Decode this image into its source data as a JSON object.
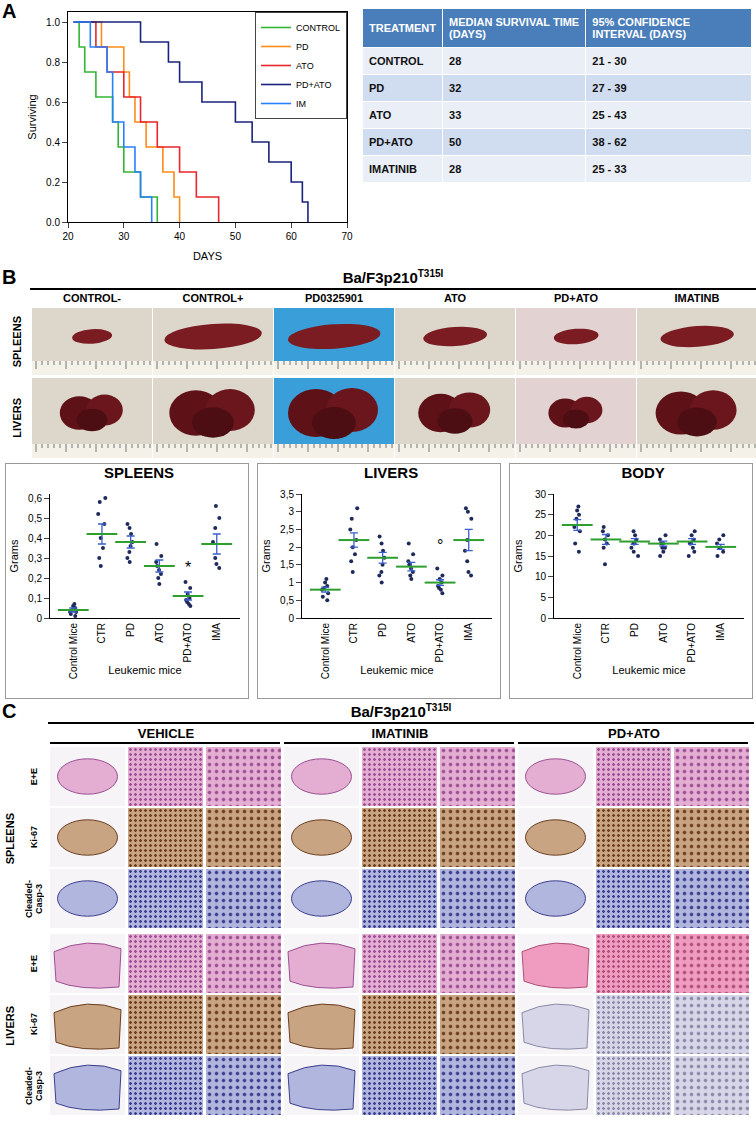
{
  "chart_data": [
    {
      "type": "line",
      "line_style": "step",
      "xlabel": "DAYS",
      "ylabel": "Surviving",
      "xlim": [
        20,
        70
      ],
      "xticks": [
        20,
        30,
        40,
        50,
        60,
        70
      ],
      "ylim": [
        0,
        1.05
      ],
      "yticks": [
        {
          "value": 0,
          "label": "0.0"
        },
        {
          "value": 0.2,
          "label": "0.2"
        },
        {
          "value": 0.4,
          "label": "0.4"
        },
        {
          "value": 0.6,
          "label": "0.6"
        },
        {
          "value": 0.8,
          "label": "0.8"
        },
        {
          "value": 1,
          "label": "1.0"
        }
      ],
      "grid": false,
      "legend": "top right",
      "series": [
        {
          "name": "CONTROL",
          "color": "#33b533",
          "x": [
            21,
            22,
            23,
            25,
            28,
            29,
            30,
            33,
            36
          ],
          "values": [
            1,
            0.875,
            0.75,
            0.625,
            0.5,
            0.375,
            0.25,
            0.125,
            0
          ]
        },
        {
          "name": "PD",
          "color": "#ff8c1a",
          "x": [
            21,
            26,
            30,
            31,
            32,
            34,
            37,
            39,
            40
          ],
          "values": [
            1,
            0.875,
            0.75,
            0.625,
            0.5,
            0.375,
            0.25,
            0.125,
            0
          ]
        },
        {
          "name": "ATO",
          "color": "#e8262b",
          "x": [
            21,
            25,
            27,
            30,
            33,
            36,
            40,
            43,
            47
          ],
          "values": [
            1,
            0.875,
            0.75,
            0.625,
            0.5,
            0.375,
            0.25,
            0.125,
            0
          ]
        },
        {
          "name": "PD+ATO",
          "color": "#1a237e",
          "x": [
            21,
            33,
            38,
            40,
            44,
            50,
            53,
            56,
            60,
            62,
            63
          ],
          "values": [
            1,
            0.9,
            0.8,
            0.7,
            0.6,
            0.5,
            0.4,
            0.3,
            0.2,
            0.1,
            0
          ]
        },
        {
          "name": "IM",
          "color": "#2a7fff",
          "x": [
            21,
            24,
            27,
            28,
            30,
            32,
            33,
            35
          ],
          "values": [
            1,
            0.875,
            0.75,
            0.5,
            0.375,
            0.25,
            0.125,
            0
          ]
        }
      ]
    },
    {
      "type": "strip",
      "title": "SPLEENS",
      "xlabel": "Leukemic mice",
      "ylabel": "Grams",
      "color": "#1f2a5a",
      "categories": [
        "Control Mice",
        "CTR",
        "PD",
        "ATO",
        "PD+ATO",
        "IMA"
      ],
      "values": [
        [
          0.01,
          0.02,
          0.03,
          0.04,
          0.05,
          0.06,
          0.07,
          0.03
        ],
        [
          0.6,
          0.58,
          0.52,
          0.47,
          0.4,
          0.3,
          0.26,
          0.35
        ],
        [
          0.47,
          0.45,
          0.42,
          0.38,
          0.36,
          0.33,
          0.3,
          0.28
        ],
        [
          0.37,
          0.31,
          0.28,
          0.26,
          0.24,
          0.22,
          0.2,
          0.17
        ],
        [
          0.18,
          0.15,
          0.12,
          0.1,
          0.09,
          0.07,
          0.06,
          0.08
        ],
        [
          0.56,
          0.5,
          0.45,
          0.38,
          0.3,
          0.27,
          0.25
        ]
      ],
      "means": [
        0.04,
        0.42,
        0.38,
        0.26,
        0.11,
        0.37
      ],
      "errors": [
        0.01,
        0.05,
        0.03,
        0.03,
        0.02,
        0.05
      ],
      "ylim": [
        0,
        0.62
      ],
      "yticks": [
        0,
        {
          "value": 0.1,
          "label": "0,1"
        },
        {
          "value": 0.2,
          "label": "0,2"
        },
        {
          "value": 0.3,
          "label": "0,3"
        },
        {
          "value": 0.4,
          "label": "0,4"
        },
        {
          "value": 0.5,
          "label": "0,5"
        },
        {
          "value": 0.6,
          "label": "0,6"
        }
      ],
      "grid": false,
      "annotations": [
        {
          "category": "PD+ATO",
          "y": 0.2,
          "text": "*"
        }
      ]
    },
    {
      "type": "strip",
      "title": "LIVERS",
      "xlabel": "Leukemic mice",
      "ylabel": "Grams",
      "color": "#1f2a5a",
      "categories": [
        "Control Mice",
        "CTR",
        "PD",
        "ATO",
        "PD+ATO",
        "IMA"
      ],
      "values": [
        [
          0.5,
          0.6,
          0.7,
          0.8,
          0.85,
          0.9,
          1.0,
          1.1
        ],
        [
          3.1,
          2.8,
          2.5,
          2.2,
          2.0,
          1.8,
          1.6,
          1.3
        ],
        [
          2.3,
          2.1,
          1.9,
          1.7,
          1.5,
          1.3,
          1.2,
          1.0
        ],
        [
          2.1,
          1.8,
          1.6,
          1.5,
          1.4,
          1.3,
          1.2,
          1.1
        ],
        [
          1.4,
          1.2,
          1.1,
          1.0,
          0.9,
          0.85,
          0.8,
          0.7
        ],
        [
          3.1,
          3.0,
          2.8,
          2.2,
          1.9,
          1.6,
          1.3,
          1.2
        ]
      ],
      "means": [
        0.8,
        2.2,
        1.7,
        1.45,
        1.0,
        2.2
      ],
      "errors": [
        0.07,
        0.2,
        0.15,
        0.12,
        0.08,
        0.3
      ],
      "ylim": [
        0,
        3.5
      ],
      "yticks": [
        0,
        {
          "value": 0.5,
          "label": "0,5"
        },
        1,
        {
          "value": 1.5,
          "label": "1,5"
        },
        2,
        {
          "value": 2.5,
          "label": "2,5"
        },
        3,
        {
          "value": 3.5,
          "label": "3,5"
        }
      ],
      "grid": false,
      "annotations": [
        {
          "category": "PD+ATO",
          "y": 1.75,
          "text": "°"
        }
      ]
    },
    {
      "type": "strip",
      "title": "BODY",
      "xlabel": "Leukemic mice",
      "ylabel": "Grams",
      "color": "#1f2a5a",
      "categories": [
        "Control Mice",
        "CTR",
        "PD",
        "ATO",
        "PD+ATO",
        "IMA"
      ],
      "values": [
        [
          27,
          26,
          25,
          24,
          22,
          21,
          18,
          16
        ],
        [
          22,
          21,
          20,
          19,
          18,
          17,
          13
        ],
        [
          21,
          20,
          19,
          18,
          18,
          17,
          16,
          15
        ],
        [
          20,
          19,
          18,
          18,
          17,
          17,
          16,
          15
        ],
        [
          21,
          20,
          19,
          18,
          18,
          17,
          16,
          15
        ],
        [
          20,
          19,
          18,
          17,
          17,
          16,
          15
        ]
      ],
      "means": [
        22.5,
        19,
        18.5,
        18,
        18.5,
        17.2
      ],
      "errors": [
        1.3,
        1.2,
        0.7,
        0.6,
        0.7,
        0.6
      ],
      "ylim": [
        0,
        30
      ],
      "yticks": [
        0,
        5,
        10,
        15,
        20,
        25,
        30
      ],
      "grid": false,
      "annotations": []
    }
  ],
  "panel_labels": [
    "A",
    "B",
    "C"
  ],
  "table": {
    "header": [
      "TREATMENT",
      "MEDIAN SURVIVAL TIME (DAYS)",
      "95% CONFIDENCE INTERVAL (DAYS)"
    ],
    "rows": [
      [
        "CONTROL",
        "28",
        "21 - 30"
      ],
      [
        "PD",
        "32",
        "27 - 39"
      ],
      [
        "ATO",
        "33",
        "25 - 43"
      ],
      [
        "PD+ATO",
        "50",
        "38 - 62"
      ],
      [
        "IMATINIB",
        "28",
        "25 - 33"
      ]
    ]
  },
  "photos": {
    "title": {
      "text": "Ba/F3p210",
      "superscript": "T315I"
    },
    "columns": [
      "CONTROL-",
      "CONTROL+",
      "PD0325901",
      "ATO",
      "PD+ATO",
      "IMATINB"
    ],
    "rows": [
      "SPLEENS",
      "LIVERS"
    ]
  },
  "histology": {
    "title": {
      "text": "Ba/F3p210",
      "superscript": "T315I"
    },
    "treatments": [
      "VEHICLE",
      "IMATINIB",
      "PD+ATO"
    ],
    "organs": [
      "SPLEENS",
      "LIVERS"
    ],
    "stains": [
      "E+E",
      "Ki-67",
      "Cleaded-Casp-3"
    ]
  }
}
